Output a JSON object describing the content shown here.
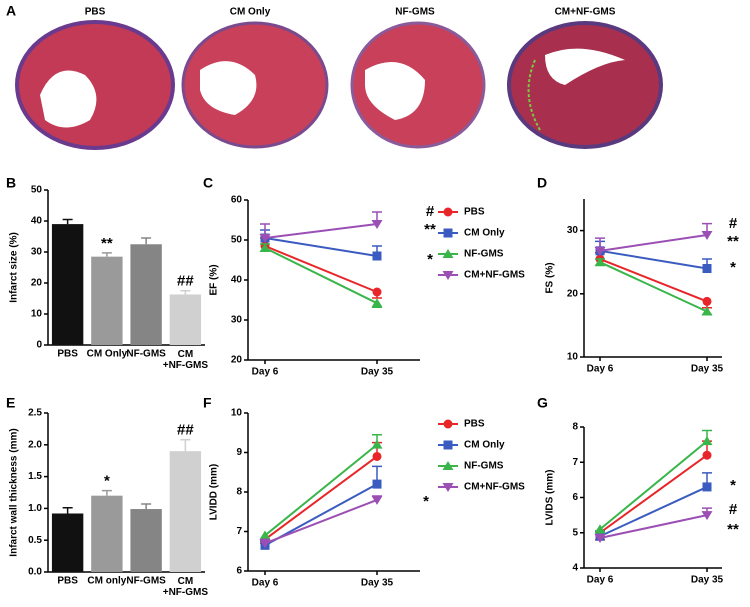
{
  "images": {
    "panel": "A",
    "labels": [
      "PBS",
      "CM Only",
      "NF-GMS",
      "CM+NF-GMS"
    ]
  },
  "chart_data": [
    {
      "type": "bar",
      "panel": "B",
      "ylabel": "Infarct size (%)",
      "categories": [
        "PBS",
        "CM Only",
        "NF-GMS",
        "CM\n+NF-GMS"
      ],
      "values": [
        39,
        28.5,
        32.5,
        16.3
      ],
      "errors": [
        1.5,
        1.2,
        2,
        1.2
      ],
      "colors": [
        "#111111",
        "#9a9a9a",
        "#858585",
        "#d0d0d0"
      ],
      "ylim": [
        0,
        50
      ],
      "yticks": [
        0,
        10,
        20,
        30,
        40,
        50
      ],
      "annotations": [
        "**",
        "##"
      ]
    },
    {
      "type": "line",
      "panel": "C",
      "ylabel": "EF (%)",
      "x": [
        "Day 6",
        "Day 35"
      ],
      "legend": true,
      "series": [
        {
          "name": "PBS",
          "color": "#e8262a",
          "values": [
            48.5,
            37
          ],
          "errors": [
            2,
            1.5
          ]
        },
        {
          "name": "CM Only",
          "color": "#3a5bbf",
          "values": [
            50.5,
            46
          ],
          "errors": [
            2,
            2.5
          ]
        },
        {
          "name": "NF-GMS",
          "color": "#39b54a",
          "values": [
            48,
            34.2
          ],
          "errors": [
            1,
            1
          ]
        },
        {
          "name": "CM+NF-GMS",
          "color": "#9b4fb5",
          "values": [
            50.5,
            54
          ],
          "errors": [
            3.5,
            3
          ]
        }
      ],
      "ylim": [
        20,
        60
      ],
      "yticks": [
        20,
        30,
        40,
        50,
        60
      ],
      "annotations": [
        "#",
        "**",
        "*"
      ]
    },
    {
      "type": "line",
      "panel": "D",
      "ylabel": "FS (%)",
      "x": [
        "Day 6",
        "Day 35"
      ],
      "legend": false,
      "series": [
        {
          "name": "PBS",
          "color": "#e8262a",
          "values": [
            25.5,
            18.8
          ],
          "errors": [
            1,
            1
          ]
        },
        {
          "name": "CM Only",
          "color": "#3a5bbf",
          "values": [
            26.8,
            24
          ],
          "errors": [
            1.5,
            1.5
          ]
        },
        {
          "name": "NF-GMS",
          "color": "#39b54a",
          "values": [
            25,
            17.2
          ],
          "errors": [
            0.5,
            0.5
          ]
        },
        {
          "name": "CM+NF-GMS",
          "color": "#9b4fb5",
          "values": [
            26.8,
            29.3
          ],
          "errors": [
            2,
            1.8
          ]
        }
      ],
      "ylim": [
        10,
        35
      ],
      "yticks": [
        10,
        20,
        30
      ],
      "annotations": [
        "#",
        "**",
        "*"
      ]
    },
    {
      "type": "bar",
      "panel": "E",
      "ylabel": "Infarct wall thickness (mm)",
      "categories": [
        "PBS",
        "CM only",
        "NF-GMS",
        "CM\n+NF-GMS"
      ],
      "values": [
        0.92,
        1.2,
        0.99,
        1.9
      ],
      "errors": [
        0.09,
        0.08,
        0.08,
        0.18
      ],
      "colors": [
        "#111111",
        "#9a9a9a",
        "#858585",
        "#d0d0d0"
      ],
      "ylim": [
        0,
        2.5
      ],
      "yticks": [
        {
          "value": 0,
          "label": "0.0"
        },
        0.5,
        {
          "value": 1,
          "label": "1.0"
        },
        1.5,
        {
          "value": 2,
          "label": "2.0"
        },
        2.5
      ],
      "annotations": [
        "*",
        "##"
      ]
    },
    {
      "type": "line",
      "panel": "F",
      "ylabel": "LVIDD (mm)",
      "x": [
        "Day 6",
        "Day 35"
      ],
      "legend": true,
      "series": [
        {
          "name": "PBS",
          "color": "#e8262a",
          "values": [
            6.8,
            8.9
          ],
          "errors": [
            0.1,
            0.35
          ]
        },
        {
          "name": "CM Only",
          "color": "#3a5bbf",
          "values": [
            6.65,
            8.2
          ],
          "errors": [
            0.1,
            0.45
          ]
        },
        {
          "name": "NF-GMS",
          "color": "#39b54a",
          "values": [
            6.9,
            9.2
          ],
          "errors": [
            0.1,
            0.25
          ]
        },
        {
          "name": "CM+NF-GMS",
          "color": "#9b4fb5",
          "values": [
            6.7,
            7.8
          ],
          "errors": [
            0.1,
            0.1
          ]
        }
      ],
      "ylim": [
        6,
        10
      ],
      "yticks": [
        6,
        7,
        8,
        9,
        10
      ],
      "annotations": [
        "*"
      ]
    },
    {
      "type": "line",
      "panel": "G",
      "ylabel": "LVIDS (mm)",
      "x": [
        "Day 6",
        "Day 35"
      ],
      "legend": false,
      "series": [
        {
          "name": "PBS",
          "color": "#e8262a",
          "values": [
            5,
            7.2
          ],
          "errors": [
            0.2,
            0.4
          ]
        },
        {
          "name": "CM Only",
          "color": "#3a5bbf",
          "values": [
            4.9,
            6.3
          ],
          "errors": [
            0.15,
            0.4
          ]
        },
        {
          "name": "NF-GMS",
          "color": "#39b54a",
          "values": [
            5.1,
            7.6
          ],
          "errors": [
            0.15,
            0.3
          ]
        },
        {
          "name": "CM+NF-GMS",
          "color": "#9b4fb5",
          "values": [
            4.85,
            5.5
          ],
          "errors": [
            0.1,
            0.2
          ]
        }
      ],
      "ylim": [
        4,
        8
      ],
      "yticks": [
        4,
        5,
        6,
        7,
        8
      ],
      "annotations": [
        "*",
        "#",
        "**"
      ]
    }
  ]
}
